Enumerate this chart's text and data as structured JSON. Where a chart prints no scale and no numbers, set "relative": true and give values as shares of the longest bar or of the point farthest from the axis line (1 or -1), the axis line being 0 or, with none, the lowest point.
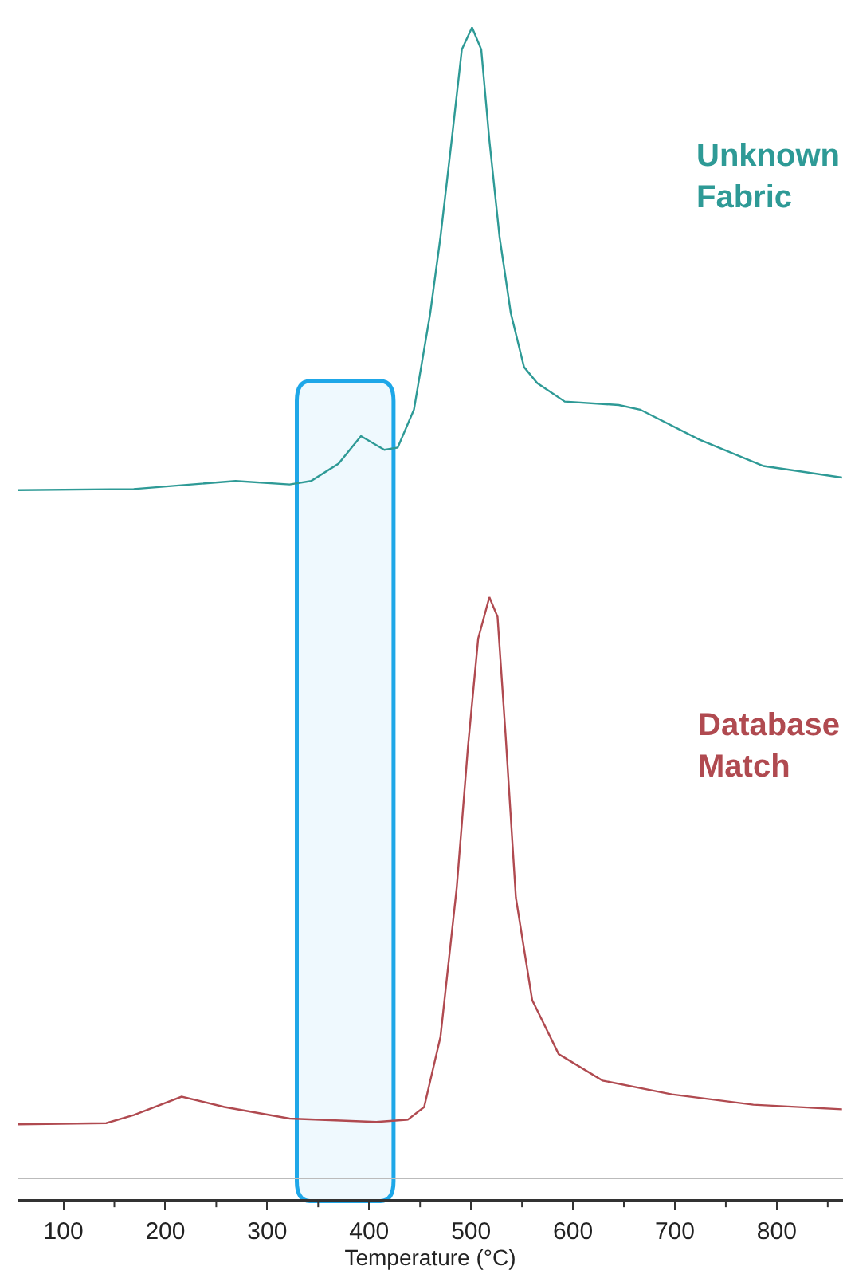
{
  "chart_data": {
    "type": "line",
    "relative": true,
    "xlabel": "Temperature (°C)",
    "tick_labels": "x",
    "legend": false,
    "grid": false,
    "marker": "none",
    "line_style": "solid",
    "xlim": [
      55,
      865
    ],
    "xticks": [
      100,
      200,
      300,
      400,
      500,
      600,
      700,
      800
    ],
    "bands": [
      {
        "axis": "x",
        "from": 331,
        "to": 422,
        "color": "#1ea7e8"
      }
    ],
    "series": [
      {
        "name": "Unknown Fabric",
        "color": "#2e9a96",
        "x": [
          55,
          169,
          269,
          322,
          343,
          370,
          392,
          415,
          428,
          444,
          460,
          470,
          481,
          491,
          501,
          510,
          518,
          528,
          539,
          552,
          565,
          592,
          645,
          666,
          724,
          787,
          864
        ],
        "values": [
          0.598,
          0.599,
          0.606,
          0.603,
          0.606,
          0.621,
          0.645,
          0.633,
          0.635,
          0.668,
          0.752,
          0.818,
          0.902,
          0.981,
          1.0,
          0.981,
          0.902,
          0.818,
          0.752,
          0.705,
          0.691,
          0.675,
          0.672,
          0.668,
          0.642,
          0.619,
          0.609
        ]
      },
      {
        "name": "Database Match",
        "color": "#b04a50",
        "x": [
          55,
          142,
          169,
          216,
          258,
          322,
          407,
          438,
          454,
          470,
          486,
          497,
          507,
          518,
          526,
          534,
          544,
          560,
          586,
          629,
          697,
          777,
          864
        ],
        "values": [
          0.047,
          0.048,
          0.055,
          0.071,
          0.062,
          0.052,
          0.049,
          0.051,
          0.062,
          0.123,
          0.253,
          0.375,
          0.469,
          0.505,
          0.488,
          0.384,
          0.244,
          0.155,
          0.108,
          0.085,
          0.073,
          0.064,
          0.06
        ]
      }
    ]
  }
}
